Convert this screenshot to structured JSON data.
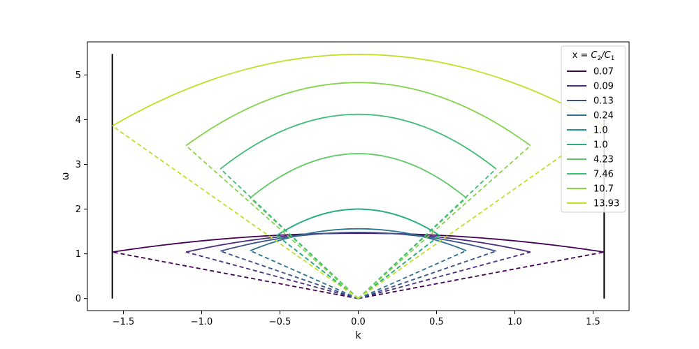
{
  "chart_data": {
    "type": "line",
    "title": "",
    "xlabel": "k",
    "ylabel": "ω",
    "xlim": [
      -1.73,
      1.73
    ],
    "ylim": [
      -0.27,
      5.74
    ],
    "xticks": [
      {
        "value": -1.5,
        "label": "−1.5"
      },
      {
        "value": -1.0,
        "label": "−1.0"
      },
      {
        "value": -0.5,
        "label": "−0.5"
      },
      {
        "value": 0.0,
        "label": "0.0"
      },
      {
        "value": 0.5,
        "label": "0.5"
      },
      {
        "value": 1.0,
        "label": "1.0"
      },
      {
        "value": 1.5,
        "label": "1.5"
      }
    ],
    "yticks": [
      {
        "value": 0,
        "label": "0"
      },
      {
        "value": 1,
        "label": "1"
      },
      {
        "value": 2,
        "label": "2"
      },
      {
        "value": 3,
        "label": "3"
      },
      {
        "value": 4,
        "label": "4"
      },
      {
        "value": 5,
        "label": "5"
      }
    ],
    "grid": false,
    "legend": {
      "title_prefix": "x = ",
      "title_c2": "C",
      "title_sub2": "2",
      "title_slash": "/",
      "title_c1": "C",
      "title_sub1": "1",
      "placement": "top-right"
    },
    "boundary_lines": [
      {
        "x": -1.5708,
        "y0": 0,
        "y1": 5.47,
        "color": "#000000"
      },
      {
        "x": 1.5708,
        "y0": 0,
        "y1": 4.0,
        "color": "#000000"
      }
    ],
    "series": [
      {
        "name": "0.07",
        "color": "#440154",
        "kmax": 1.5708,
        "upper_top": 1.46,
        "upper_end": 1.04,
        "lower_end": 1.04
      },
      {
        "name": "0.09",
        "color": "#472d7b",
        "kmax": 1.1,
        "upper_top": 1.47,
        "upper_end": 1.04,
        "lower_end": 1.04
      },
      {
        "name": "0.13",
        "color": "#3b528b",
        "kmax": 0.88,
        "upper_top": 1.48,
        "upper_end": 1.06,
        "lower_end": 1.06
      },
      {
        "name": "0.24",
        "color": "#2c728e",
        "kmax": 0.69,
        "upper_top": 1.56,
        "upper_end": 1.07,
        "lower_end": 1.07
      },
      {
        "name": "1.0",
        "color": "#21918c",
        "kmax": 0.52,
        "upper_top": 2.0,
        "upper_end": 1.41,
        "lower_end": 1.41
      },
      {
        "name": "1.0",
        "color": "#28ae80",
        "kmax": 0.52,
        "upper_top": 2.0,
        "upper_end": 1.41,
        "lower_end": 1.41
      },
      {
        "name": "4.23",
        "color": "#5ec962",
        "kmax": 0.69,
        "upper_top": 3.24,
        "upper_end": 2.25,
        "lower_end": 2.25
      },
      {
        "name": "7.46",
        "color": "#3fbc73",
        "kmax": 0.88,
        "upper_top": 4.12,
        "upper_end": 2.9,
        "lower_end": 2.9
      },
      {
        "name": "10.7",
        "color": "#84d44b",
        "kmax": 1.1,
        "upper_top": 4.83,
        "upper_end": 3.42,
        "lower_end": 3.42
      },
      {
        "name": "13.93",
        "color": "#c1df25",
        "kmax": 1.5708,
        "upper_top": 5.46,
        "upper_end": 3.86,
        "lower_end": 3.86
      }
    ]
  }
}
